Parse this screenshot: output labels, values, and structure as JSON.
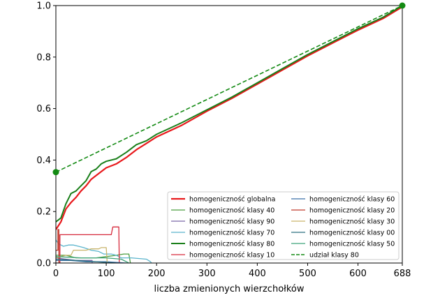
{
  "chart_data": {
    "type": "line",
    "title": "",
    "xlabel": "liczba zmienionych wierzchołków",
    "ylabel": "",
    "xlim": [
      0,
      688
    ],
    "ylim": [
      0,
      1.0
    ],
    "xticks": [
      0,
      100,
      200,
      300,
      400,
      500,
      600,
      688
    ],
    "yticks": [
      0.0,
      0.2,
      0.4,
      0.6,
      0.8,
      1.0
    ],
    "xtick_labels": [
      "0",
      "100",
      "200",
      "300",
      "400",
      "500",
      "600",
      "688"
    ],
    "ytick_labels": [
      "0.0",
      "0.2",
      "0.4",
      "0.6",
      "0.8",
      "1.0"
    ],
    "grid": false,
    "legend_position": "lower-right",
    "series": [
      {
        "name": "homogeniczność globalna",
        "color": "#e8191c",
        "dash": "solid",
        "width": 2.2,
        "points": [
          [
            0,
            0.13
          ],
          [
            10,
            0.16
          ],
          [
            20,
            0.21
          ],
          [
            30,
            0.235
          ],
          [
            40,
            0.255
          ],
          [
            50,
            0.28
          ],
          [
            60,
            0.3
          ],
          [
            70,
            0.325
          ],
          [
            80,
            0.34
          ],
          [
            90,
            0.355
          ],
          [
            100,
            0.37
          ],
          [
            120,
            0.385
          ],
          [
            140,
            0.41
          ],
          [
            160,
            0.44
          ],
          [
            180,
            0.465
          ],
          [
            200,
            0.49
          ],
          [
            250,
            0.535
          ],
          [
            300,
            0.59
          ],
          [
            350,
            0.64
          ],
          [
            400,
            0.695
          ],
          [
            450,
            0.75
          ],
          [
            500,
            0.805
          ],
          [
            550,
            0.855
          ],
          [
            600,
            0.905
          ],
          [
            650,
            0.95
          ],
          [
            688,
            0.995
          ]
        ]
      },
      {
        "name": "homogeniczność klasy 40",
        "color": "#4a9d3f",
        "dash": "solid",
        "width": 1.3,
        "points": [
          [
            0,
            0.03
          ],
          [
            10,
            0.03
          ],
          [
            20,
            0.03
          ],
          [
            40,
            0.02
          ],
          [
            60,
            0.02
          ],
          [
            80,
            0.02
          ],
          [
            100,
            0.025
          ],
          [
            120,
            0.03
          ],
          [
            135,
            0.035
          ],
          [
            145,
            0.035
          ],
          [
            148,
            0.0
          ]
        ]
      },
      {
        "name": "homogeniczność klasy 90",
        "color": "#7a68a6",
        "dash": "solid",
        "width": 1.3,
        "points": [
          [
            0,
            0.02
          ],
          [
            20,
            0.015
          ],
          [
            40,
            0.01
          ],
          [
            60,
            0.01
          ],
          [
            72,
            0.01
          ],
          [
            72,
            0.0
          ]
        ]
      },
      {
        "name": "homogeniczność klasy 70",
        "color": "#5ab4cc",
        "dash": "solid",
        "width": 1.3,
        "points": [
          [
            0,
            0.09
          ],
          [
            5,
            0.075
          ],
          [
            15,
            0.065
          ],
          [
            25,
            0.07
          ],
          [
            35,
            0.07
          ],
          [
            45,
            0.065
          ],
          [
            55,
            0.06
          ],
          [
            70,
            0.05
          ],
          [
            85,
            0.045
          ],
          [
            95,
            0.035
          ],
          [
            110,
            0.035
          ],
          [
            120,
            0.03
          ],
          [
            130,
            0.02
          ],
          [
            150,
            0.02
          ],
          [
            180,
            0.015
          ],
          [
            188,
            0.005
          ],
          [
            190,
            0.0
          ]
        ]
      },
      {
        "name": "homogeniczność klasy 80",
        "color": "#1a7f1a",
        "dash": "solid",
        "width": 2.0,
        "points": [
          [
            0,
            0.16
          ],
          [
            10,
            0.175
          ],
          [
            20,
            0.23
          ],
          [
            30,
            0.27
          ],
          [
            40,
            0.28
          ],
          [
            50,
            0.3
          ],
          [
            60,
            0.32
          ],
          [
            70,
            0.355
          ],
          [
            80,
            0.365
          ],
          [
            90,
            0.385
          ],
          [
            100,
            0.395
          ],
          [
            120,
            0.405
          ],
          [
            140,
            0.43
          ],
          [
            160,
            0.46
          ],
          [
            180,
            0.475
          ],
          [
            200,
            0.5
          ],
          [
            250,
            0.545
          ],
          [
            300,
            0.595
          ],
          [
            350,
            0.645
          ],
          [
            400,
            0.7
          ],
          [
            450,
            0.755
          ],
          [
            500,
            0.81
          ],
          [
            550,
            0.86
          ],
          [
            600,
            0.91
          ],
          [
            650,
            0.955
          ],
          [
            688,
            1.0
          ]
        ]
      },
      {
        "name": "homogeniczność klasy 10",
        "color": "#d6293b",
        "dash": "solid",
        "width": 1.3,
        "points": [
          [
            0,
            0.0
          ],
          [
            8,
            0.0
          ],
          [
            8,
            0.11
          ],
          [
            20,
            0.11
          ],
          [
            60,
            0.11
          ],
          [
            110,
            0.11
          ],
          [
            113,
            0.14
          ],
          [
            125,
            0.14
          ],
          [
            126,
            0.0
          ]
        ]
      },
      {
        "name": "homogeniczność klasy 60",
        "color": "#3a6fa8",
        "dash": "solid",
        "width": 1.3,
        "points": [
          [
            0,
            0.01
          ],
          [
            30,
            0.01
          ],
          [
            60,
            0.005
          ],
          [
            100,
            0.005
          ],
          [
            140,
            0.0
          ]
        ]
      },
      {
        "name": "homogeniczność klasy 20",
        "color": "#c0392b",
        "dash": "solid",
        "width": 1.3,
        "points": [
          [
            0,
            0.05
          ],
          [
            4,
            0.05
          ],
          [
            4,
            0.13
          ],
          [
            6,
            0.13
          ],
          [
            6,
            0.0
          ]
        ]
      },
      {
        "name": "homogeniczność klasy 30",
        "color": "#c9b46b",
        "dash": "solid",
        "width": 1.3,
        "points": [
          [
            0,
            0.02
          ],
          [
            20,
            0.03
          ],
          [
            30,
            0.03
          ],
          [
            35,
            0.05
          ],
          [
            60,
            0.05
          ],
          [
            70,
            0.055
          ],
          [
            85,
            0.055
          ],
          [
            90,
            0.06
          ],
          [
            100,
            0.06
          ],
          [
            102,
            0.0
          ]
        ]
      },
      {
        "name": "homogeniczność klasy 00",
        "color": "#2a6f7f",
        "dash": "solid",
        "width": 1.3,
        "points": [
          [
            0,
            0.015
          ],
          [
            40,
            0.01
          ],
          [
            80,
            0.005
          ],
          [
            120,
            0.0
          ]
        ]
      },
      {
        "name": "homogeniczność klasy 50",
        "color": "#3fa37a",
        "dash": "solid",
        "width": 1.3,
        "points": [
          [
            0,
            0.025
          ],
          [
            50,
            0.02
          ],
          [
            100,
            0.02
          ],
          [
            130,
            0.015
          ],
          [
            145,
            0.0
          ]
        ]
      },
      {
        "name": "udział klasy 80",
        "color": "#138a13",
        "dash": "dashed",
        "width": 1.6,
        "points": [
          [
            0,
            0.353
          ],
          [
            688,
            1.0
          ]
        ]
      }
    ],
    "markers": [
      {
        "x": 0,
        "y": 0.353,
        "color": "#138a13"
      },
      {
        "x": 688,
        "y": 1.0,
        "color": "#138a13"
      }
    ]
  }
}
